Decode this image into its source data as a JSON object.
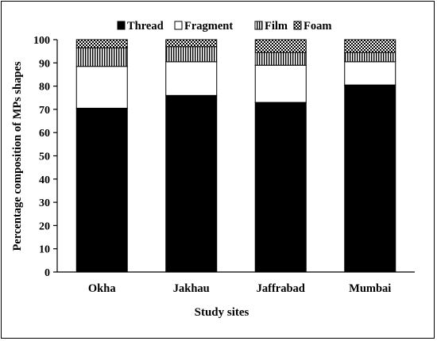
{
  "chart_data": {
    "type": "bar",
    "stacked": true,
    "title": "",
    "xlabel": "Study sites",
    "ylabel": "Percentage composition of MPs shapes",
    "categories": [
      "Okha",
      "Jakhau",
      "Jaffrabad",
      "Mumbai"
    ],
    "ylim": [
      0,
      100
    ],
    "yticks": [
      "0",
      "10",
      "20",
      "30",
      "40",
      "50",
      "60",
      "70",
      "80",
      "90",
      "100"
    ],
    "grid": false,
    "legend_position": "top",
    "series": [
      {
        "name": "Thread",
        "fill": "solid-black",
        "values": [
          70.5,
          76.0,
          73.0,
          80.5
        ]
      },
      {
        "name": "Fragment",
        "fill": "white",
        "values": [
          18.0,
          14.5,
          16.0,
          10.0
        ]
      },
      {
        "name": "Film",
        "fill": "vertical-stripes",
        "values": [
          8.0,
          6.5,
          5.5,
          4.0
        ]
      },
      {
        "name": "Foam",
        "fill": "checkered",
        "values": [
          3.5,
          3.0,
          5.5,
          5.5
        ]
      }
    ]
  }
}
